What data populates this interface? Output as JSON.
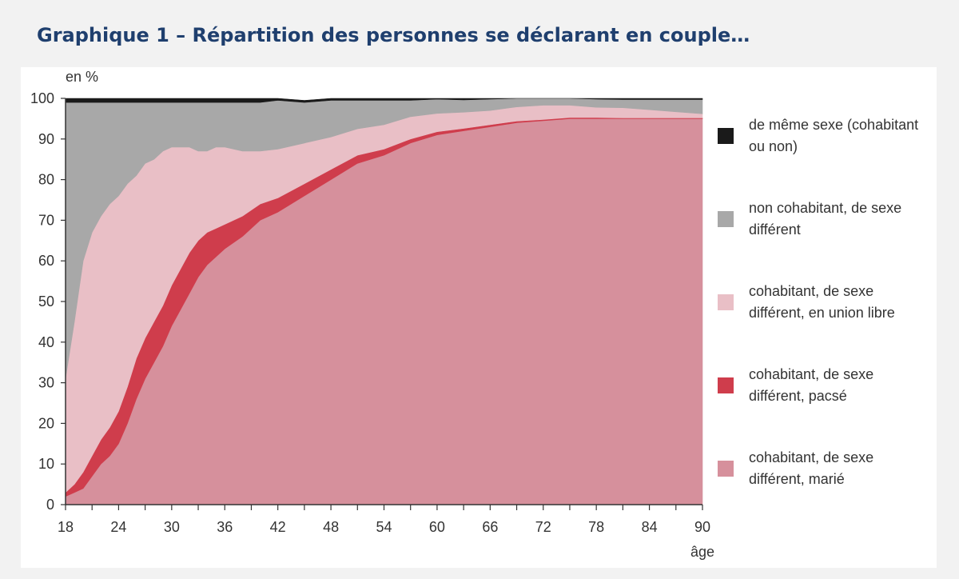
{
  "title": "Graphique 1 – Répartition des personnes se déclarant en couple…",
  "chart_data": {
    "type": "area",
    "stacked": true,
    "title": "Graphique 1 – Répartition des personnes se déclarant en couple…",
    "ylabel": "en %",
    "xlabel": "âge",
    "xlim": [
      18,
      90
    ],
    "ylim": [
      0,
      100
    ],
    "x_ticks": [
      18,
      24,
      30,
      36,
      42,
      48,
      54,
      60,
      66,
      72,
      78,
      84,
      90
    ],
    "y_ticks": [
      0,
      10,
      20,
      30,
      40,
      50,
      60,
      70,
      80,
      90,
      100
    ],
    "legend_position": "right",
    "x": [
      18,
      19,
      20,
      21,
      22,
      23,
      24,
      25,
      26,
      27,
      28,
      29,
      30,
      31,
      32,
      33,
      34,
      35,
      36,
      38,
      40,
      42,
      45,
      48,
      51,
      54,
      57,
      60,
      63,
      66,
      69,
      72,
      75,
      78,
      81,
      84,
      87,
      90
    ],
    "series": [
      {
        "name": "cohabitant, de sexe différent, marié",
        "color": "#d6909c",
        "values": [
          2,
          3,
          4,
          7,
          10,
          12,
          15,
          20,
          26,
          31,
          35,
          39,
          44,
          48,
          52,
          56,
          59,
          61,
          63,
          66,
          70,
          72,
          76,
          80,
          84,
          86,
          89,
          91,
          92,
          93,
          94,
          94.5,
          95,
          95,
          95,
          95,
          95,
          95
        ]
      },
      {
        "name": "cohabitant, de sexe différent, pacsé",
        "color": "#cf3d4c",
        "values": [
          1,
          2,
          4,
          5,
          6,
          7,
          8,
          9,
          10,
          10,
          10,
          10,
          10,
          10,
          10,
          9,
          8,
          7,
          6,
          5,
          4,
          3.5,
          3,
          2.5,
          2,
          1.5,
          1,
          0.8,
          0.6,
          0.5,
          0.4,
          0.3,
          0.3,
          0.3,
          0.2,
          0.2,
          0.2,
          0.2
        ]
      },
      {
        "name": "cohabitant, de sexe différent, en union libre",
        "color": "#e9bfc6",
        "values": [
          28,
          40,
          52,
          55,
          55,
          55,
          53,
          50,
          45,
          43,
          40,
          38,
          34,
          30,
          26,
          22,
          20,
          20,
          19,
          16,
          13,
          12,
          10,
          8,
          6.5,
          6,
          5.5,
          4.5,
          4,
          3.5,
          3.5,
          3.5,
          3,
          2.5,
          2.5,
          2,
          1.5,
          1
        ]
      },
      {
        "name": "non cohabitant, de sexe différent",
        "color": "#a8a8a8",
        "values": [
          68,
          54,
          39,
          32,
          28,
          25,
          23,
          20,
          18,
          15,
          14,
          12,
          11,
          11,
          11,
          12,
          12,
          11,
          11,
          12,
          12,
          12,
          10,
          9,
          7,
          6,
          4,
          3.5,
          3,
          2.8,
          2.5,
          2.2,
          2.2,
          2,
          2,
          2.5,
          3,
          3.5
        ]
      },
      {
        "name": "de même sexe (cohabitant ou non)",
        "color": "#1a1a1a",
        "values": [
          1,
          1,
          1,
          1,
          1,
          1,
          1,
          1,
          1,
          1,
          1,
          1,
          1,
          1,
          1,
          1,
          1,
          1,
          1,
          1,
          1,
          0.5,
          0.5,
          0.5,
          0.5,
          0.5,
          0.5,
          0.2,
          0.4,
          0.2,
          0.1,
          0.5,
          0.5,
          0.2,
          0.3,
          0.3,
          0.3,
          0.3
        ]
      }
    ],
    "legend": [
      {
        "lines": [
          "de même sexe (cohabitant",
          "ou non)"
        ],
        "color": "#1a1a1a"
      },
      {
        "lines": [
          "non cohabitant, de sexe",
          "différent"
        ],
        "color": "#a8a8a8"
      },
      {
        "lines": [
          "cohabitant, de sexe",
          "différent, en union libre"
        ],
        "color": "#e9bfc6"
      },
      {
        "lines": [
          "cohabitant, de sexe",
          "différent, pacsé"
        ],
        "color": "#cf3d4c"
      },
      {
        "lines": [
          "cohabitant, de sexe",
          "différent, marié"
        ],
        "color": "#d6909c"
      }
    ]
  }
}
